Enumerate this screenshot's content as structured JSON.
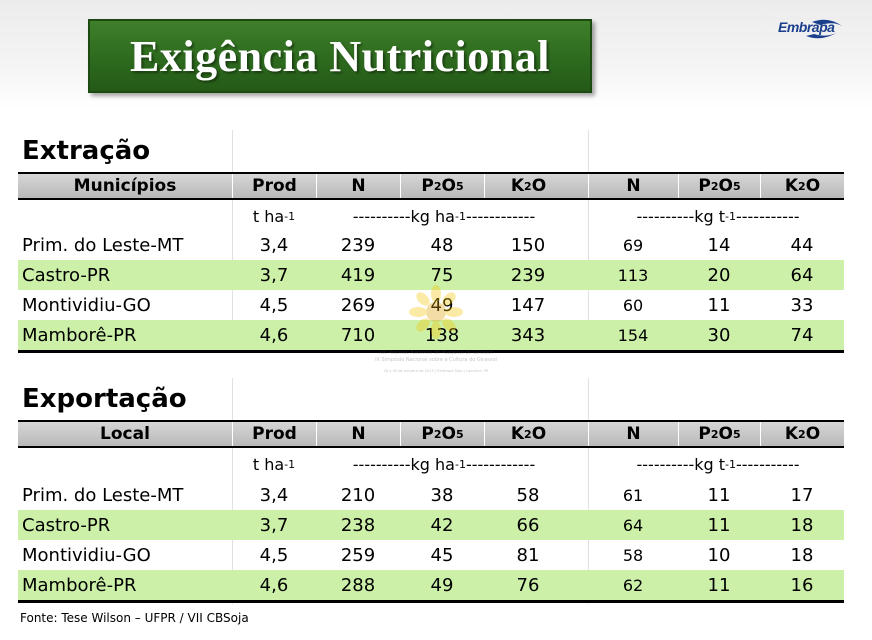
{
  "title": "Exigência Nutricional",
  "logo_text": "Embrapa",
  "header_cols": [
    "Prod",
    "N",
    "P2O5",
    "K2O",
    "N",
    "P2O5",
    "K2O"
  ],
  "header_parts": {
    "p2o5": {
      "a": "P",
      "b": "2",
      "c": "O",
      "d": "5"
    },
    "k2o": {
      "a": "K",
      "b": "2",
      "c": "O"
    }
  },
  "units": {
    "prod": "t ha",
    "prod_exp": "-1",
    "mid": "----------kg ha",
    "mid_exp": "-1",
    "mid_tail": "------------",
    "right": "----------kg t",
    "right_exp": "-1",
    "right_tail": "-----------"
  },
  "extracao": {
    "section_title": "Extração",
    "first_col": "Municípios",
    "rows": [
      {
        "name": "Prim. do Leste-MT",
        "prod": "3,4",
        "n": "239",
        "p": "48",
        "k": "150",
        "n2": "69",
        "p2": "14",
        "k2": "44"
      },
      {
        "name": "Castro-PR",
        "prod": "3,7",
        "n": "419",
        "p": "75",
        "k": "239",
        "n2": "113",
        "p2": "20",
        "k2": "64"
      },
      {
        "name": "Montividiu-GO",
        "prod": "4,5",
        "n": "269",
        "p": "49",
        "k": "147",
        "n2": "60",
        "p2": "11",
        "k2": "33"
      },
      {
        "name": "Mamborê-PR",
        "prod": "4,6",
        "n": "710",
        "p": "138",
        "k": "343",
        "n2": "154",
        "p2": "30",
        "k2": "74"
      }
    ]
  },
  "exportacao": {
    "section_title": "Exportação",
    "first_col": "Local",
    "rows": [
      {
        "name": "Prim. do Leste-MT",
        "prod": "3,4",
        "n": "210",
        "p": "38",
        "k": "58",
        "n2": "61",
        "p2": "11",
        "k2": "17"
      },
      {
        "name": "Castro-PR",
        "prod": "3,7",
        "n": "238",
        "p": "42",
        "k": "66",
        "n2": "64",
        "p2": "11",
        "k2": "18"
      },
      {
        "name": "Montividiu-GO",
        "prod": "4,5",
        "n": "259",
        "p": "45",
        "k": "81",
        "n2": "58",
        "p2": "10",
        "k2": "18"
      },
      {
        "name": "Mamborê-PR",
        "prod": "4,6",
        "n": "288",
        "p": "49",
        "k": "76",
        "n2": "62",
        "p2": "11",
        "k2": "16"
      }
    ]
  },
  "watermark": {
    "line1": "XXI Reunião Nacional de Pesquisa de Girassol",
    "line2": "IX Simpósio Nacional sobre a Cultura do Girassol",
    "line3": "28 a 30 de outubro de 2015 | Embrapa Soja | Londrina, PR"
  },
  "source": "Fonte: Tese Wilson – UFPR / VII CBSoja",
  "colors": {
    "title_green": "#2d6a1e",
    "row_green": "#ccf0a8",
    "header_gray": "#c4c4c4",
    "logo_blue": "#1a3f8c"
  }
}
